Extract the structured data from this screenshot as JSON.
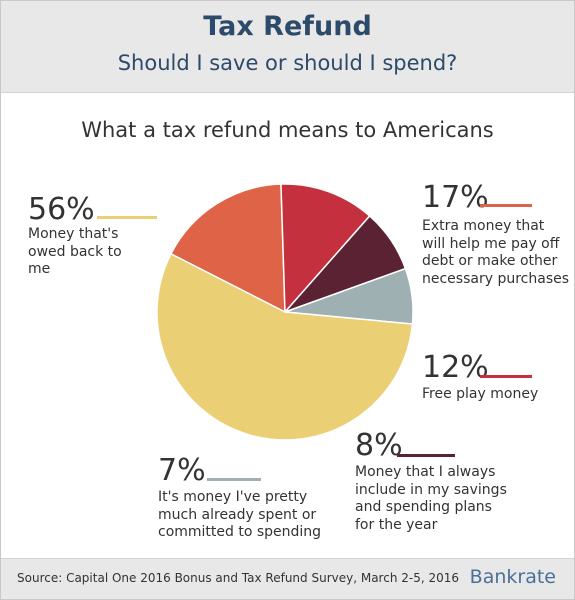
{
  "header": {
    "title": "Tax Refund",
    "subtitle": "Should I save or should I spend?"
  },
  "chart_data": {
    "type": "pie",
    "title": "What a tax refund means to Americans",
    "slices": [
      {
        "pct_label": "56%",
        "value": 56,
        "label": "Money that's owed back to me",
        "color": "#ebcf75"
      },
      {
        "pct_label": "17%",
        "value": 17,
        "label": "Extra money that will help me pay off debt or make other necessary purchases",
        "color": "#de6347"
      },
      {
        "pct_label": "12%",
        "value": 12,
        "label": "Free play money",
        "color": "#c5303f"
      },
      {
        "pct_label": "8%",
        "value": 8,
        "label": "Money that I always include in my savings and spending plans for the year",
        "color": "#5a2233"
      },
      {
        "pct_label": "7%",
        "value": 7,
        "label": "It's money I've pretty much already spent or committed to spending",
        "color": "#9fb0b3"
      }
    ]
  },
  "footer": {
    "source": "Source: Capital One 2016 Bonus and Tax Refund Survey, March 2-5, 2016",
    "brand": "Bankrate"
  }
}
